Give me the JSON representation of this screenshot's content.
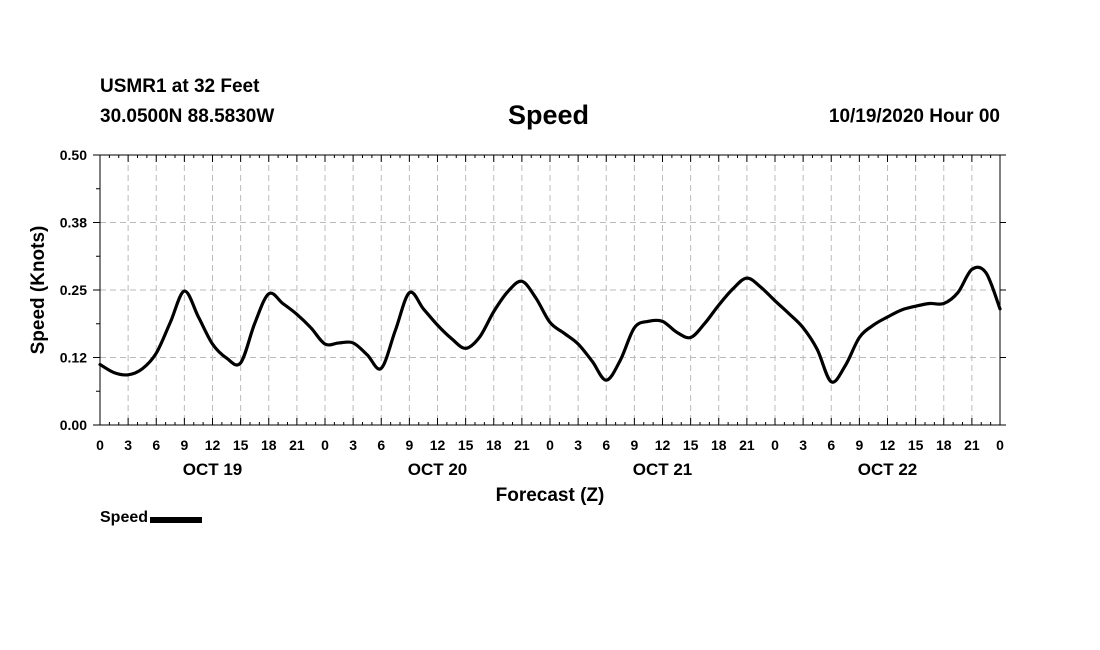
{
  "header": {
    "station": "USMR1 at 32 Feet",
    "coords": "30.0500N 88.5830W",
    "title": "Speed",
    "timestamp": "10/19/2020 Hour 00"
  },
  "legend": {
    "label": "Speed",
    "color": "#000000"
  },
  "chart_data": {
    "type": "line",
    "title": "Speed",
    "xlabel": "Forecast (Z)",
    "ylabel": "Speed (Knots)",
    "ylim": [
      0,
      0.5
    ],
    "xlim": [
      0,
      96
    ],
    "y_ticks": [
      0.0,
      0.125,
      0.25,
      0.375,
      0.5
    ],
    "y_tick_labels": [
      "0.00",
      "0.12",
      "0.25",
      "0.38",
      "0.50"
    ],
    "x_ticks": [
      0,
      3,
      6,
      9,
      12,
      15,
      18,
      21,
      24,
      27,
      30,
      33,
      36,
      39,
      42,
      45,
      48,
      51,
      54,
      57,
      60,
      63,
      66,
      69,
      72,
      75,
      78,
      81,
      84,
      87,
      90,
      93,
      96
    ],
    "x_tick_labels": [
      "0",
      "3",
      "6",
      "9",
      "12",
      "15",
      "18",
      "21",
      "0",
      "3",
      "6",
      "9",
      "12",
      "15",
      "18",
      "21",
      "0",
      "3",
      "6",
      "9",
      "12",
      "15",
      "18",
      "21",
      "0",
      "3",
      "6",
      "9",
      "12",
      "15",
      "18",
      "21",
      "0"
    ],
    "day_labels": [
      {
        "hour": 12,
        "label": "OCT 19"
      },
      {
        "hour": 36,
        "label": "OCT 20"
      },
      {
        "hour": 60,
        "label": "OCT 21"
      },
      {
        "hour": 84,
        "label": "OCT 22"
      }
    ],
    "grid": true,
    "series": [
      {
        "name": "Speed",
        "color": "#000000",
        "x": [
          0,
          1.5,
          3,
          4.5,
          6,
          7.5,
          9,
          10.5,
          12,
          13.5,
          15,
          16.5,
          18,
          19.5,
          21,
          22.5,
          24,
          25.5,
          27,
          28.5,
          30,
          31.5,
          33,
          34.5,
          36,
          37.5,
          39,
          40.5,
          42,
          43.5,
          45,
          46.5,
          48,
          49.5,
          51,
          52.5,
          54,
          55.5,
          57,
          58.5,
          60,
          61.5,
          63,
          64.5,
          66,
          67.5,
          69,
          70.5,
          72,
          73.5,
          75,
          76.5,
          78,
          79.5,
          81,
          82.5,
          84,
          85.5,
          87,
          88.5,
          90,
          91.5,
          93,
          94.5,
          96
        ],
        "values": [
          0.112,
          0.097,
          0.093,
          0.104,
          0.133,
          0.19,
          0.248,
          0.2,
          0.15,
          0.124,
          0.115,
          0.188,
          0.243,
          0.225,
          0.205,
          0.18,
          0.15,
          0.152,
          0.152,
          0.13,
          0.105,
          0.175,
          0.245,
          0.215,
          0.185,
          0.16,
          0.142,
          0.163,
          0.21,
          0.247,
          0.266,
          0.235,
          0.19,
          0.17,
          0.15,
          0.118,
          0.083,
          0.12,
          0.18,
          0.192,
          0.192,
          0.172,
          0.162,
          0.188,
          0.222,
          0.252,
          0.272,
          0.255,
          0.23,
          0.206,
          0.18,
          0.14,
          0.08,
          0.11,
          0.162,
          0.185,
          0.2,
          0.213,
          0.22,
          0.225,
          0.225,
          0.245,
          0.288,
          0.282,
          0.215
        ]
      }
    ]
  }
}
